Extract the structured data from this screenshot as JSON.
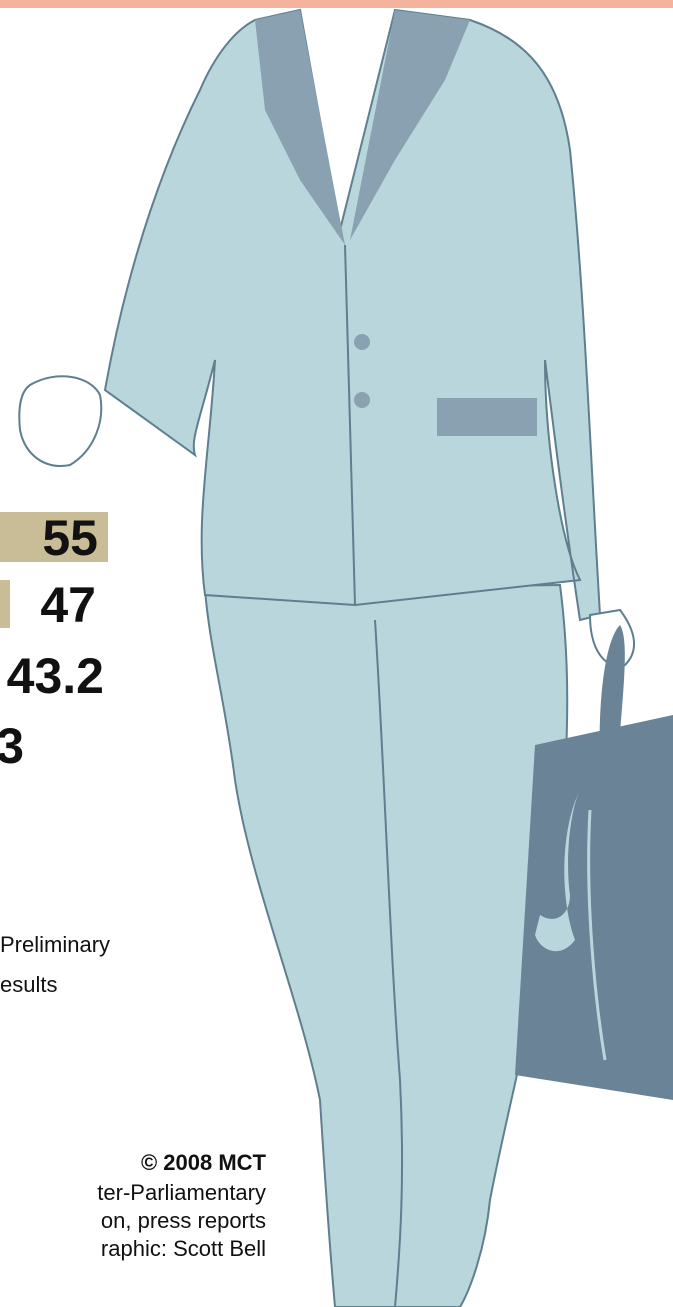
{
  "bars": [
    {
      "label": "55"
    },
    {
      "label": "47"
    },
    {
      "label": "43.2"
    },
    {
      "label": "3"
    }
  ],
  "note": [
    "Preliminary",
    "esults"
  ],
  "credits": {
    "copyright": "© 2008 MCT",
    "lines": [
      "ter-Parliamentary",
      "on, press reports",
      "raphic: Scott Bell"
    ]
  }
}
